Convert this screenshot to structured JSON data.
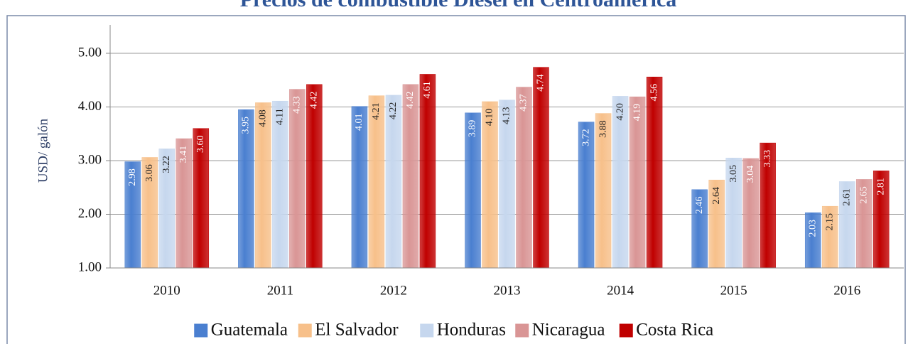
{
  "chart_data": {
    "type": "bar",
    "title": "Precios de combustible Diesel en Centroamérica",
    "y_label": "USD/ galón",
    "categories": [
      "2010",
      "2011",
      "2012",
      "2013",
      "2014",
      "2015",
      "2016"
    ],
    "series": [
      {
        "name": "Guatemala",
        "color": "#4a7fd0",
        "values": [
          2.98,
          3.95,
          4.01,
          3.89,
          3.72,
          2.46,
          2.03
        ],
        "value_labels": [
          "2.98",
          "3.95",
          "4.01",
          "3.89",
          "3.72",
          "2.46",
          "2.03"
        ]
      },
      {
        "name": "El Salvador",
        "color": "#f7c08a",
        "values": [
          3.06,
          4.08,
          4.21,
          4.1,
          3.88,
          2.64,
          2.15
        ],
        "value_labels": [
          "3.06",
          "4.08",
          "4.21",
          "4.10",
          "3.88",
          "2.64",
          "2.15"
        ]
      },
      {
        "name": "Honduras",
        "color": "#c6d7ee",
        "values": [
          3.22,
          4.11,
          4.22,
          4.13,
          4.2,
          3.05,
          2.61
        ],
        "value_labels": [
          "3.22",
          "4.11",
          "4.22",
          "4.13",
          "4.20",
          "3.05",
          "2.61"
        ]
      },
      {
        "name": "Nicaragua",
        "color": "#d99595",
        "values": [
          3.41,
          4.33,
          4.42,
          4.37,
          4.19,
          3.04,
          2.65
        ],
        "value_labels": [
          "3.41",
          "4.33",
          "4.42",
          "4.37",
          "4.19",
          "3.04",
          "2.65"
        ]
      },
      {
        "name": "Costa Rica",
        "color": "#c00000",
        "values": [
          3.6,
          4.42,
          4.61,
          4.74,
          4.56,
          3.33,
          2.81
        ],
        "value_labels": [
          "3.60",
          "4.42",
          "4.61",
          "4.74",
          "4.56",
          "3.33",
          "2.81"
        ]
      }
    ],
    "ylim": [
      1,
      5.53
    ],
    "yticks": [
      {
        "value": 1,
        "label": "1.00"
      },
      {
        "value": 2,
        "label": "2.00"
      },
      {
        "value": 3,
        "label": "3.00"
      },
      {
        "value": 4,
        "label": "4.00"
      },
      {
        "value": 5,
        "label": "5.00"
      }
    ],
    "grid": true
  }
}
